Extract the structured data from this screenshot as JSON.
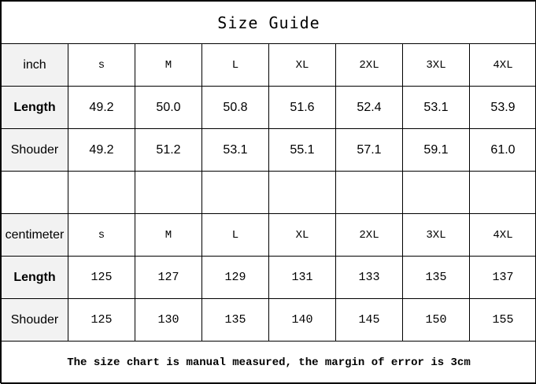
{
  "title": "Size Guide",
  "inch": {
    "unit": "inch",
    "sizes": [
      "s",
      "M",
      "L",
      "XL",
      "2XL",
      "3XL",
      "4XL"
    ],
    "rows": [
      {
        "label": "Length",
        "values": [
          "49.2",
          "50.0",
          "50.8",
          "51.6",
          "52.4",
          "53.1",
          "53.9"
        ]
      },
      {
        "label": "Shouder",
        "values": [
          "49.2",
          "51.2",
          "53.1",
          "55.1",
          "57.1",
          "59.1",
          "61.0"
        ]
      }
    ]
  },
  "cm": {
    "unit": "centimeter",
    "sizes": [
      "s",
      "M",
      "L",
      "XL",
      "2XL",
      "3XL",
      "4XL"
    ],
    "rows": [
      {
        "label": "Length",
        "values": [
          "125",
          "127",
          "129",
          "131",
          "133",
          "135",
          "137"
        ]
      },
      {
        "label": "Shouder",
        "values": [
          "125",
          "130",
          "135",
          "140",
          "145",
          "150",
          "155"
        ]
      }
    ]
  },
  "note": "The size chart is manual measured, the margin of error is 3cm"
}
